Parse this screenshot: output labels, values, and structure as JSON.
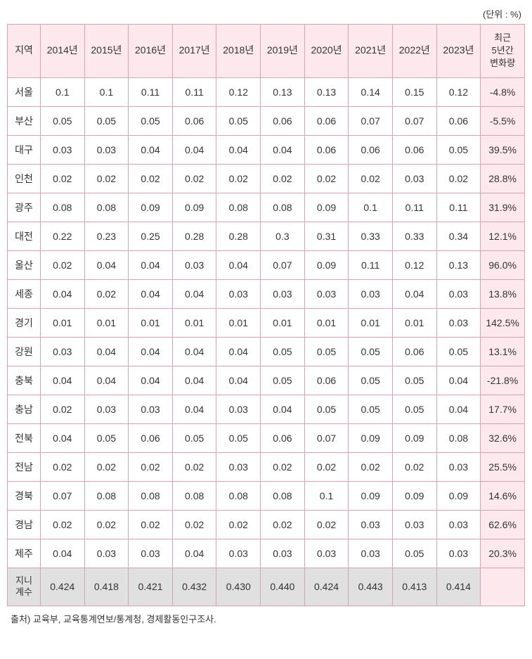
{
  "unit_label": "(단위 : %)",
  "columns": [
    "지역",
    "2014년",
    "2015년",
    "2016년",
    "2017년",
    "2018년",
    "2019년",
    "2020년",
    "2021년",
    "2022년",
    "2023년",
    "최근\n5년간\n변화량"
  ],
  "rows": [
    {
      "region": "서울",
      "values": [
        "0.1",
        "0.1",
        "0.11",
        "0.11",
        "0.12",
        "0.13",
        "0.13",
        "0.14",
        "0.15",
        "0.12"
      ],
      "change": "-4.8%"
    },
    {
      "region": "부산",
      "values": [
        "0.05",
        "0.05",
        "0.05",
        "0.06",
        "0.05",
        "0.06",
        "0.06",
        "0.07",
        "0.07",
        "0.06"
      ],
      "change": "-5.5%"
    },
    {
      "region": "대구",
      "values": [
        "0.03",
        "0.03",
        "0.04",
        "0.04",
        "0.04",
        "0.04",
        "0.06",
        "0.06",
        "0.06",
        "0.05"
      ],
      "change": "39.5%"
    },
    {
      "region": "인천",
      "values": [
        "0.02",
        "0.02",
        "0.02",
        "0.02",
        "0.02",
        "0.02",
        "0.02",
        "0.02",
        "0.03",
        "0.02"
      ],
      "change": "28.8%"
    },
    {
      "region": "광주",
      "values": [
        "0.08",
        "0.08",
        "0.09",
        "0.09",
        "0.08",
        "0.08",
        "0.09",
        "0.1",
        "0.11",
        "0.11"
      ],
      "change": "31.9%"
    },
    {
      "region": "대전",
      "values": [
        "0.22",
        "0.23",
        "0.25",
        "0.28",
        "0.28",
        "0.3",
        "0.31",
        "0.33",
        "0.33",
        "0.34"
      ],
      "change": "12.1%"
    },
    {
      "region": "울산",
      "values": [
        "0.02",
        "0.04",
        "0.04",
        "0.03",
        "0.04",
        "0.07",
        "0.09",
        "0.11",
        "0.12",
        "0.13"
      ],
      "change": "96.0%"
    },
    {
      "region": "세종",
      "values": [
        "0.04",
        "0.02",
        "0.04",
        "0.04",
        "0.03",
        "0.03",
        "0.03",
        "0.03",
        "0.04",
        "0.03"
      ],
      "change": "13.8%"
    },
    {
      "region": "경기",
      "values": [
        "0.01",
        "0.01",
        "0.01",
        "0.01",
        "0.01",
        "0.01",
        "0.01",
        "0.01",
        "0.01",
        "0.03"
      ],
      "change": "142.5%"
    },
    {
      "region": "강원",
      "values": [
        "0.03",
        "0.04",
        "0.04",
        "0.04",
        "0.04",
        "0.05",
        "0.05",
        "0.05",
        "0.06",
        "0.05"
      ],
      "change": "13.1%"
    },
    {
      "region": "충북",
      "values": [
        "0.04",
        "0.04",
        "0.04",
        "0.04",
        "0.04",
        "0.05",
        "0.06",
        "0.05",
        "0.05",
        "0.04"
      ],
      "change": "-21.8%"
    },
    {
      "region": "충남",
      "values": [
        "0.02",
        "0.03",
        "0.03",
        "0.04",
        "0.03",
        "0.04",
        "0.05",
        "0.05",
        "0.05",
        "0.04"
      ],
      "change": "17.7%"
    },
    {
      "region": "전북",
      "values": [
        "0.04",
        "0.05",
        "0.06",
        "0.05",
        "0.05",
        "0.06",
        "0.07",
        "0.09",
        "0.09",
        "0.08"
      ],
      "change": "32.6%"
    },
    {
      "region": "전남",
      "values": [
        "0.02",
        "0.02",
        "0.02",
        "0.02",
        "0.03",
        "0.02",
        "0.02",
        "0.02",
        "0.02",
        "0.03"
      ],
      "change": "25.5%"
    },
    {
      "region": "경북",
      "values": [
        "0.07",
        "0.08",
        "0.08",
        "0.08",
        "0.08",
        "0.08",
        "0.1",
        "0.09",
        "0.09",
        "0.09"
      ],
      "change": "14.6%"
    },
    {
      "region": "경남",
      "values": [
        "0.02",
        "0.02",
        "0.02",
        "0.02",
        "0.02",
        "0.02",
        "0.02",
        "0.03",
        "0.03",
        "0.03"
      ],
      "change": "62.6%"
    },
    {
      "region": "제주",
      "values": [
        "0.04",
        "0.03",
        "0.03",
        "0.04",
        "0.03",
        "0.03",
        "0.03",
        "0.03",
        "0.05",
        "0.03"
      ],
      "change": "20.3%"
    }
  ],
  "gini_row": {
    "region": "지니\n계수",
    "values": [
      "0.424",
      "0.418",
      "0.421",
      "0.432",
      "0.430",
      "0.440",
      "0.424",
      "0.443",
      "0.413",
      "0.414"
    ],
    "change": ""
  },
  "footnote": "출처) 교육부, 교육통계연보/통계청, 경제활동인구조사.",
  "styling": {
    "header_bg": "#fce8ed",
    "border_color": "#d4a5b0",
    "gini_bg": "#e0e0e0",
    "change_col_bg": "#fce8ed",
    "font_size_cell": 14,
    "font_size_header": 14,
    "font_size_unit": 13,
    "font_size_footnote": 13,
    "text_color": "#333333",
    "background_color": "#ffffff"
  }
}
